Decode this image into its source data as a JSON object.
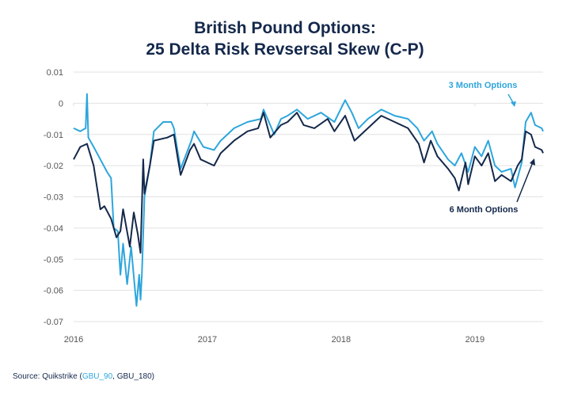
{
  "chart_data": {
    "type": "line",
    "title_line1": "British Pound Options:",
    "title_line2": "25 Delta Risk Revsersal Skew (C-P)",
    "xlabel": "",
    "ylabel": "",
    "xlim": [
      2016,
      2019.51
    ],
    "ylim": [
      -0.07,
      0.01
    ],
    "x_ticks": [
      "2016",
      "2017",
      "2018",
      "2019"
    ],
    "y_ticks": [
      "0.01",
      "0",
      "-0.01",
      "-0.02",
      "-0.03",
      "-0.04",
      "-0.05",
      "-0.06",
      "-0.07"
    ],
    "grid": true,
    "series": [
      {
        "name": "3 Month Options",
        "color": "#2ea6dc",
        "x": [
          2016.0,
          2016.05,
          2016.09,
          2016.1,
          2016.11,
          2016.15,
          2016.2,
          2016.25,
          2016.28,
          2016.3,
          2016.33,
          2016.35,
          2016.37,
          2016.4,
          2016.43,
          2016.47,
          2016.49,
          2016.5,
          2016.51,
          2016.53,
          2016.57,
          2016.6,
          2016.67,
          2016.73,
          2016.75,
          2016.78,
          2016.8,
          2016.88,
          2016.9,
          2016.97,
          2017.05,
          2017.1,
          2017.2,
          2017.3,
          2017.4,
          2017.42,
          2017.5,
          2017.55,
          2017.6,
          2017.67,
          2017.75,
          2017.85,
          2017.95,
          2018.03,
          2018.08,
          2018.13,
          2018.2,
          2018.3,
          2018.4,
          2018.5,
          2018.57,
          2018.62,
          2018.68,
          2018.72,
          2018.8,
          2018.85,
          2018.9,
          2018.95,
          2019.0,
          2019.05,
          2019.1,
          2019.15,
          2019.2,
          2019.27,
          2019.3,
          2019.35,
          2019.38,
          2019.42,
          2019.45,
          2019.5,
          2019.51
        ],
        "y": [
          -0.008,
          -0.009,
          -0.008,
          0.003,
          -0.011,
          -0.014,
          -0.018,
          -0.022,
          -0.024,
          -0.04,
          -0.041,
          -0.055,
          -0.045,
          -0.058,
          -0.046,
          -0.065,
          -0.055,
          -0.063,
          -0.055,
          -0.03,
          -0.02,
          -0.009,
          -0.006,
          -0.006,
          -0.008,
          -0.016,
          -0.021,
          -0.012,
          -0.009,
          -0.014,
          -0.015,
          -0.012,
          -0.008,
          -0.006,
          -0.005,
          -0.002,
          -0.01,
          -0.005,
          -0.004,
          -0.002,
          -0.005,
          -0.003,
          -0.006,
          0.001,
          -0.003,
          -0.008,
          -0.005,
          -0.002,
          -0.004,
          -0.005,
          -0.008,
          -0.012,
          -0.009,
          -0.013,
          -0.018,
          -0.02,
          -0.016,
          -0.022,
          -0.014,
          -0.017,
          -0.012,
          -0.02,
          -0.022,
          -0.021,
          -0.027,
          -0.019,
          -0.006,
          -0.003,
          -0.007,
          -0.008,
          -0.009
        ]
      },
      {
        "name": "6 Month Options",
        "color": "#14284b",
        "x": [
          2016.0,
          2016.05,
          2016.1,
          2016.15,
          2016.2,
          2016.23,
          2016.28,
          2016.32,
          2016.35,
          2016.37,
          2016.42,
          2016.45,
          2016.48,
          2016.5,
          2016.52,
          2016.53,
          2016.57,
          2016.6,
          2016.7,
          2016.75,
          2016.78,
          2016.8,
          2016.87,
          2016.9,
          2016.95,
          2017.05,
          2017.1,
          2017.2,
          2017.3,
          2017.38,
          2017.42,
          2017.47,
          2017.55,
          2017.6,
          2017.67,
          2017.72,
          2017.8,
          2017.9,
          2017.95,
          2018.03,
          2018.1,
          2018.2,
          2018.3,
          2018.4,
          2018.5,
          2018.58,
          2018.62,
          2018.67,
          2018.72,
          2018.8,
          2018.85,
          2018.88,
          2018.93,
          2018.95,
          2019.0,
          2019.05,
          2019.1,
          2019.15,
          2019.2,
          2019.27,
          2019.32,
          2019.35,
          2019.38,
          2019.42,
          2019.45,
          2019.5,
          2019.51
        ],
        "y": [
          -0.018,
          -0.014,
          -0.013,
          -0.02,
          -0.034,
          -0.033,
          -0.037,
          -0.043,
          -0.041,
          -0.034,
          -0.046,
          -0.035,
          -0.042,
          -0.048,
          -0.018,
          -0.029,
          -0.02,
          -0.012,
          -0.011,
          -0.01,
          -0.018,
          -0.023,
          -0.015,
          -0.013,
          -0.018,
          -0.02,
          -0.016,
          -0.012,
          -0.009,
          -0.008,
          -0.003,
          -0.011,
          -0.007,
          -0.006,
          -0.003,
          -0.007,
          -0.008,
          -0.005,
          -0.009,
          -0.004,
          -0.012,
          -0.008,
          -0.004,
          -0.006,
          -0.008,
          -0.013,
          -0.019,
          -0.012,
          -0.017,
          -0.021,
          -0.024,
          -0.028,
          -0.019,
          -0.026,
          -0.017,
          -0.02,
          -0.016,
          -0.025,
          -0.023,
          -0.025,
          -0.02,
          -0.018,
          -0.009,
          -0.01,
          -0.014,
          -0.015,
          -0.016
        ]
      }
    ],
    "annotations": [
      "3 Month Options",
      "6 Month Options"
    ],
    "legend": "none"
  },
  "source": {
    "prefix": "Source: Quikstrike (",
    "code1": "GBU_90",
    "sep": ", ",
    "code2": "GBU_180",
    "suffix": ")"
  }
}
